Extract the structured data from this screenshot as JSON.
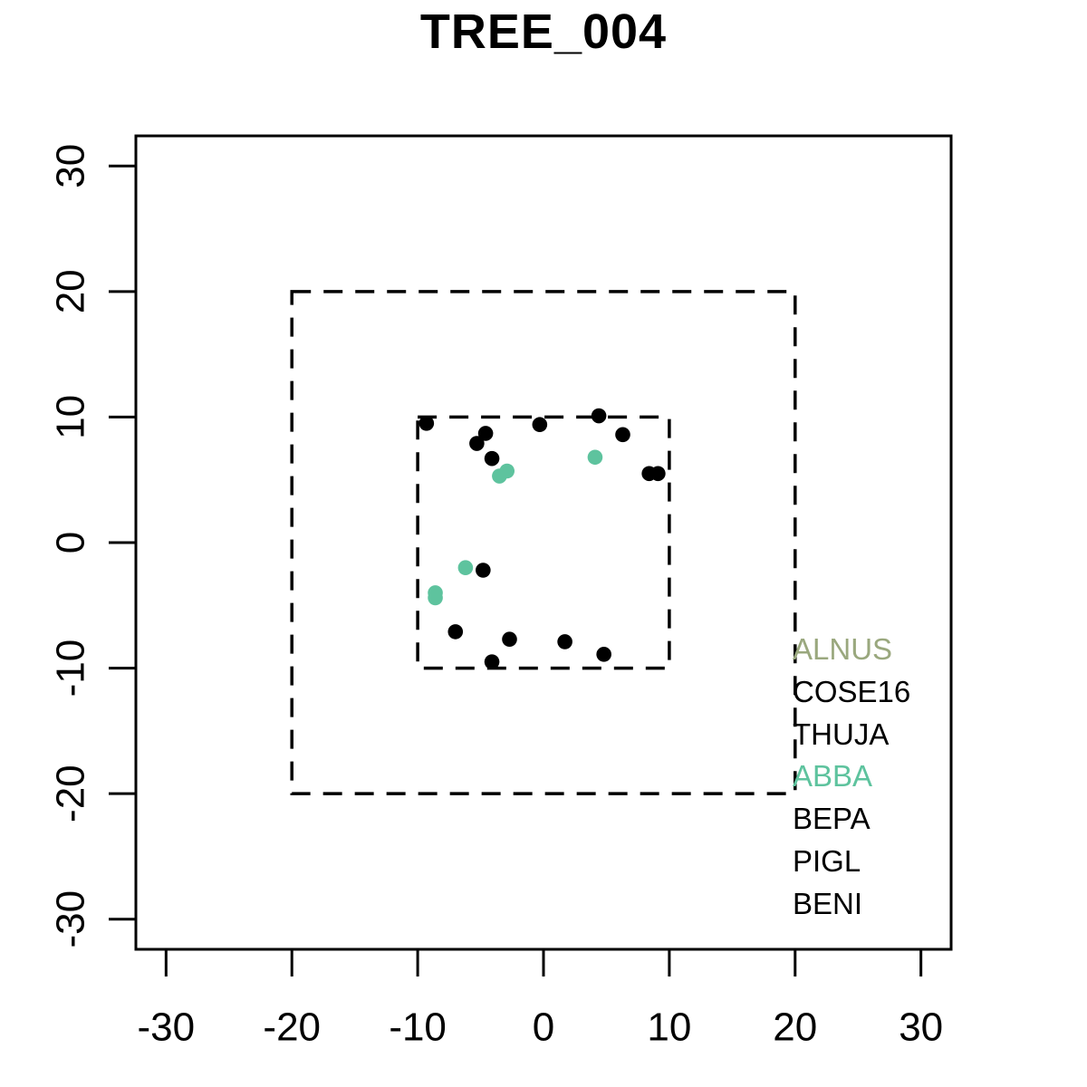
{
  "chart_data": {
    "type": "scatter",
    "title": "TREE_004",
    "xlabel": "",
    "ylabel": "",
    "xlim": [
      -32.4,
      32.4
    ],
    "ylim": [
      -32.4,
      32.4
    ],
    "xticks": [
      -30,
      -20,
      -10,
      0,
      10,
      20,
      30
    ],
    "yticks": [
      -30,
      -20,
      -10,
      0,
      10,
      20,
      30
    ],
    "grid": false,
    "reference_boxes": [
      {
        "name": "outer-boundary",
        "xmin": -20,
        "xmax": 20,
        "ymin": -20,
        "ymax": 20,
        "line_style": "dashed",
        "color": "#000000"
      },
      {
        "name": "inner-boundary",
        "xmin": -10,
        "xmax": 10,
        "ymin": -10,
        "ymax": 10,
        "line_style": "dashed",
        "color": "#000000"
      }
    ],
    "series": [
      {
        "name": "black-trees",
        "color": "#000000",
        "marker": "filled-circle",
        "points": [
          [
            -9.3,
            9.5
          ],
          [
            -4.6,
            8.7
          ],
          [
            -5.3,
            7.9
          ],
          [
            -4.1,
            6.7
          ],
          [
            -0.3,
            9.4
          ],
          [
            4.4,
            10.1
          ],
          [
            6.3,
            8.6
          ],
          [
            8.4,
            5.5
          ],
          [
            9.1,
            5.5
          ],
          [
            -4.8,
            -2.2
          ],
          [
            -7.0,
            -7.1
          ],
          [
            -2.7,
            -7.7
          ],
          [
            1.7,
            -7.9
          ],
          [
            4.8,
            -8.9
          ],
          [
            -4.1,
            -9.5
          ]
        ]
      },
      {
        "name": "abba-trees",
        "color": "#5EC39E",
        "marker": "filled-circle",
        "points": [
          [
            -2.9,
            5.7
          ],
          [
            -3.5,
            5.3
          ],
          [
            4.1,
            6.8
          ],
          [
            -6.2,
            -2.0
          ],
          [
            -8.6,
            -4.0
          ],
          [
            -8.6,
            -4.4
          ]
        ]
      }
    ],
    "legend": {
      "position": "right-middle",
      "items": [
        {
          "label": "ALNUS",
          "color": "#9AA87E"
        },
        {
          "label": "COSE16",
          "color": "#000000"
        },
        {
          "label": "THUJA",
          "color": "#000000"
        },
        {
          "label": "ABBA",
          "color": "#5EC39E"
        },
        {
          "label": "BEPA",
          "color": "#000000"
        },
        {
          "label": "PIGL",
          "color": "#000000"
        },
        {
          "label": "BENI",
          "color": "#000000"
        }
      ]
    }
  }
}
